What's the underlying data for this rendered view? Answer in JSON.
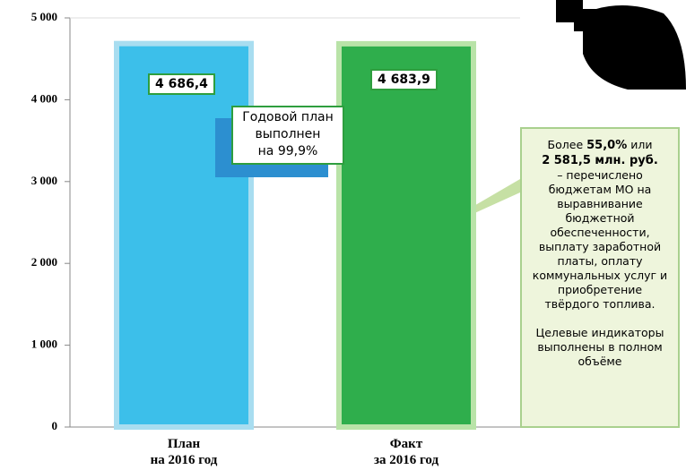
{
  "chart_data": {
    "type": "bar",
    "categories": [
      "План\nна 2016 год",
      "Факт\nза 2016 год"
    ],
    "values": [
      4686.4,
      4683.9
    ],
    "value_labels": [
      "4 686,4",
      "4 683,9"
    ],
    "colors": [
      "#3cbfea",
      "#2fae4c"
    ],
    "ylim": [
      0,
      5000
    ],
    "yticks": [
      {
        "value": 0,
        "label": "0"
      },
      {
        "value": 1000,
        "label": "1 000"
      },
      {
        "value": 2000,
        "label": "2 000"
      },
      {
        "value": 3000,
        "label": "3 000"
      },
      {
        "value": 4000,
        "label": "4 000"
      },
      {
        "value": 5000,
        "label": "5 000"
      }
    ],
    "grid": false,
    "annotation": "Годовой план\nвыполнен\nна 99,9%",
    "note": [
      {
        "text": "Более ",
        "bold": false
      },
      {
        "text": "55,0%",
        "bold": true
      },
      {
        "text": " или\n",
        "bold": false
      },
      {
        "text": "2 581,5 млн. руб.",
        "bold": true
      },
      {
        "text": "\n– перечислено бюджетам МО на выравнивание бюджетной обеспеченности, выплату заработной платы, оплату коммунальных услуг и приобретение твёрдого топлива.",
        "bold": false
      },
      {
        "text": "\n\nЦелевые индикаторы выполнены в полном объёме",
        "bold": false
      }
    ]
  }
}
